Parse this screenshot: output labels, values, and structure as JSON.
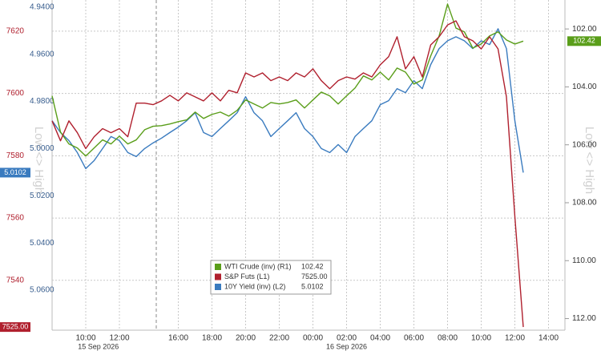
{
  "chart_data": {
    "type": "line",
    "categories": [
      null,
      null,
      null,
      null,
      "10:00",
      null,
      null,
      null,
      "12:00",
      null,
      null,
      null,
      null,
      null,
      null,
      "16:00",
      null,
      null,
      null,
      "18:00",
      null,
      null,
      null,
      "20:00",
      null,
      null,
      null,
      "22:00",
      null,
      null,
      null,
      "00:00",
      null,
      null,
      null,
      "02:00",
      null,
      null,
      null,
      "04:00",
      null,
      null,
      null,
      "06:00",
      null,
      null,
      null,
      "08:00",
      null,
      null,
      null,
      "10:00",
      null,
      null,
      null,
      "12:00",
      null,
      null,
      null,
      "14:00"
    ],
    "date_labels": [
      "15 Sep 2026",
      "16 Sep 2026"
    ],
    "left_axis_note": "Low <> High",
    "right_axis_note": "Low <> High",
    "ylim": [
      7524,
      7630
    ],
    "yticks": [
      7540,
      7560,
      7580,
      7600,
      7620
    ],
    "y2lim": [
      4.937,
      5.077
    ],
    "y2_inverted": true,
    "y2ticks": [
      {
        "value": 4.94,
        "label": "4.9400"
      },
      {
        "value": 4.96,
        "label": "4.9600"
      },
      {
        "value": 4.98,
        "label": "4.9800"
      },
      {
        "value": 5.0,
        "label": "5.0000"
      },
      {
        "value": 5.02,
        "label": "5.0200"
      },
      {
        "value": 5.04,
        "label": "5.0400"
      },
      {
        "value": 5.06,
        "label": "5.0600"
      }
    ],
    "y3lim": [
      101,
      112.4
    ],
    "y3_inverted": true,
    "y3ticks": [
      {
        "value": 102,
        "label": "102.00"
      },
      {
        "value": 104,
        "label": "104.00"
      },
      {
        "value": 106,
        "label": "106.00"
      },
      {
        "value": 108,
        "label": "108.00"
      },
      {
        "value": 110,
        "label": "110.00"
      },
      {
        "value": 112,
        "label": "112.00"
      }
    ],
    "grid": true,
    "series": [
      {
        "name": "WTI Crude (inv) (R1)",
        "color": "#5a9e1a",
        "axis": "y3",
        "values": [
          104.31,
          105.56,
          105.97,
          106.11,
          106.39,
          106.11,
          105.83,
          105.97,
          105.7,
          105.97,
          105.83,
          105.48,
          105.36,
          105.34,
          105.28,
          105.2,
          105.14,
          104.87,
          105.09,
          104.95,
          104.87,
          105.01,
          104.81,
          104.45,
          104.59,
          104.73,
          104.54,
          104.59,
          104.54,
          104.45,
          104.73,
          104.45,
          104.18,
          104.31,
          104.59,
          104.31,
          104.04,
          103.62,
          103.76,
          103.49,
          103.76,
          103.35,
          103.49,
          103.9,
          103.76,
          102.93,
          102.24,
          101.14,
          101.97,
          102.1,
          102.66,
          102.52,
          102.24,
          102.1,
          102.38,
          102.52,
          102.42,
          null,
          null,
          null
        ],
        "value_labels": [
          null,
          null,
          null,
          null,
          null,
          null,
          null,
          null,
          null,
          null,
          null,
          null,
          null,
          null,
          null,
          null,
          null,
          null,
          null,
          null,
          null,
          null,
          null,
          null,
          null,
          null,
          null,
          null,
          null,
          null,
          null,
          null,
          null,
          null,
          null,
          null,
          null,
          null,
          null,
          null,
          null,
          null,
          null,
          null,
          null,
          null,
          null,
          null,
          null,
          null,
          null,
          null,
          null,
          null,
          null,
          null,
          "102.42",
          null,
          null,
          null
        ]
      },
      {
        "name": "S&P Futs (L1)",
        "color": "#b0202e",
        "axis": "y",
        "values": [
          7591.2,
          7584.8,
          7591.2,
          7587.4,
          7582.3,
          7586.1,
          7588.7,
          7587.4,
          7588.7,
          7586.1,
          7596.9,
          7596.9,
          7596.4,
          7597.6,
          7599.4,
          7597.6,
          7600.2,
          7598.9,
          7597.6,
          7600.2,
          7597.6,
          7601.0,
          7600.2,
          7606.6,
          7605.3,
          7606.6,
          7604.1,
          7605.3,
          7604.1,
          7606.6,
          7605.3,
          7607.9,
          7604.1,
          7601.5,
          7604.1,
          7605.3,
          7604.6,
          7606.6,
          7605.3,
          7609.2,
          7611.8,
          7618.2,
          7607.9,
          7611.8,
          7605.3,
          7615.6,
          7618.2,
          7622.0,
          7623.3,
          7618.2,
          7616.9,
          7614.3,
          7618.2,
          7614.3,
          7598.9,
          7560.5,
          7525,
          null,
          null,
          null
        ],
        "value_labels": [
          null,
          null,
          null,
          null,
          null,
          null,
          null,
          null,
          null,
          null,
          null,
          null,
          null,
          null,
          null,
          null,
          null,
          null,
          null,
          null,
          null,
          null,
          null,
          null,
          null,
          null,
          null,
          null,
          null,
          null,
          null,
          null,
          null,
          null,
          null,
          null,
          null,
          null,
          null,
          null,
          null,
          null,
          null,
          null,
          null,
          null,
          null,
          null,
          null,
          null,
          null,
          null,
          null,
          null,
          null,
          null,
          "7525.00",
          null,
          null,
          null
        ]
      },
      {
        "name": "10Y Yield (inv) (L2)",
        "color": "#3a7bbf",
        "axis": "y2",
        "values": [
          4.9882,
          4.9932,
          4.9966,
          5.0017,
          5.0085,
          5.0051,
          5.0,
          4.9949,
          4.9966,
          5.0017,
          5.0034,
          5.0,
          4.9976,
          4.9956,
          4.9932,
          4.9909,
          4.9882,
          4.9848,
          4.9932,
          4.9949,
          4.9915,
          4.9882,
          4.9848,
          4.978,
          4.9848,
          4.9882,
          4.9949,
          4.9915,
          4.9882,
          4.9848,
          4.9915,
          4.9949,
          5.0,
          5.0017,
          4.9983,
          5.0017,
          4.9949,
          4.9915,
          4.9882,
          4.9814,
          4.9797,
          4.9746,
          4.9763,
          4.9712,
          4.9746,
          4.9644,
          4.9576,
          4.9543,
          4.9526,
          4.9543,
          4.9576,
          4.9543,
          4.9559,
          4.9492,
          4.9576,
          4.9882,
          5.0102,
          null,
          null,
          null
        ],
        "value_labels": [
          null,
          null,
          null,
          null,
          null,
          null,
          null,
          null,
          null,
          null,
          null,
          null,
          null,
          null,
          null,
          null,
          null,
          null,
          null,
          null,
          null,
          null,
          null,
          null,
          null,
          null,
          null,
          null,
          null,
          null,
          null,
          null,
          null,
          null,
          null,
          null,
          null,
          null,
          null,
          null,
          null,
          null,
          null,
          null,
          null,
          null,
          null,
          null,
          null,
          null,
          null,
          null,
          null,
          null,
          null,
          null,
          "5.0102",
          null,
          null,
          null
        ]
      }
    ]
  }
}
